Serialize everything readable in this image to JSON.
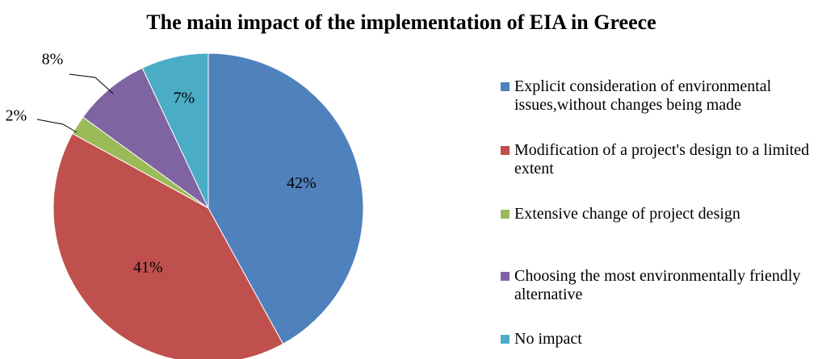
{
  "chart_data": {
    "type": "pie",
    "title": "The main impact of the implementation of EIA in Greece",
    "categories": [
      "Explicit consideration of environmental issues,without changes being made",
      "Modification of a project's design to a limited extent",
      "Extensive change of project design",
      "Choosing the most environmentally friendly alternative",
      "No impact"
    ],
    "values": [
      42,
      41,
      2,
      8,
      7
    ],
    "value_labels": [
      "42%",
      "41%",
      "2%",
      "8%",
      "7%"
    ],
    "colors": [
      "#4f81bd",
      "#c0504d",
      "#9bbb59",
      "#8064a2",
      "#4bacc6"
    ],
    "legend": "right"
  }
}
